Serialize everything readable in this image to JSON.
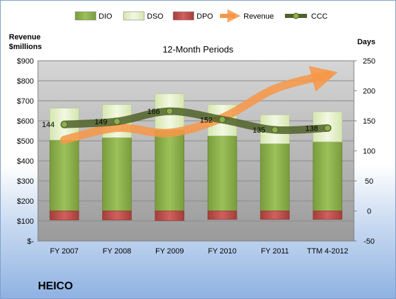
{
  "chart_data": {
    "type": "bar",
    "title": "12-Month Periods",
    "company": "HEICO",
    "y_left_label": [
      "Revenue",
      "$millions"
    ],
    "y_right_label": "Days",
    "categories": [
      "FY 2007",
      "FY 2008",
      "FY 2009",
      "FY 2010",
      "FY 2011",
      "TTM 4-2012"
    ],
    "left_axis": {
      "min": 0,
      "max": 900,
      "step": 100,
      "ticks": [
        "$-",
        "$100",
        "$200",
        "$300",
        "$400",
        "$500",
        "$600",
        "$700",
        "$800",
        "$900"
      ]
    },
    "right_axis": {
      "min": -50,
      "max": 250,
      "step": 50,
      "ticks": [
        "-50",
        "0",
        "50",
        "100",
        "150",
        "200",
        "250"
      ]
    },
    "legend": [
      "DIO",
      "DSO",
      "DPO",
      "Revenue",
      "CCC"
    ],
    "legend_position": "top",
    "grid": true,
    "series": [
      {
        "name": "DIO",
        "axis": "right",
        "color": "#8cb04a",
        "values": [
          118,
          122,
          135,
          125,
          112,
          115
        ]
      },
      {
        "name": "DSO",
        "axis": "right",
        "color": "#e4efc8",
        "values": [
          53,
          55,
          60,
          52,
          48,
          50
        ]
      },
      {
        "name": "DPO",
        "axis": "right",
        "color": "#c0504d",
        "values": [
          -15,
          -15,
          -16,
          -14,
          -14,
          -14
        ]
      },
      {
        "name": "Revenue",
        "axis": "left",
        "color": "#f79646",
        "values": [
          505,
          565,
          540,
          615,
          760,
          830
        ]
      },
      {
        "name": "CCC",
        "axis": "right",
        "color": "#4f6228",
        "values": [
          144,
          149,
          166,
          152,
          135,
          138
        ]
      }
    ],
    "ccc_labels": [
      "144",
      "149",
      "166",
      "152",
      "135",
      "138"
    ]
  }
}
